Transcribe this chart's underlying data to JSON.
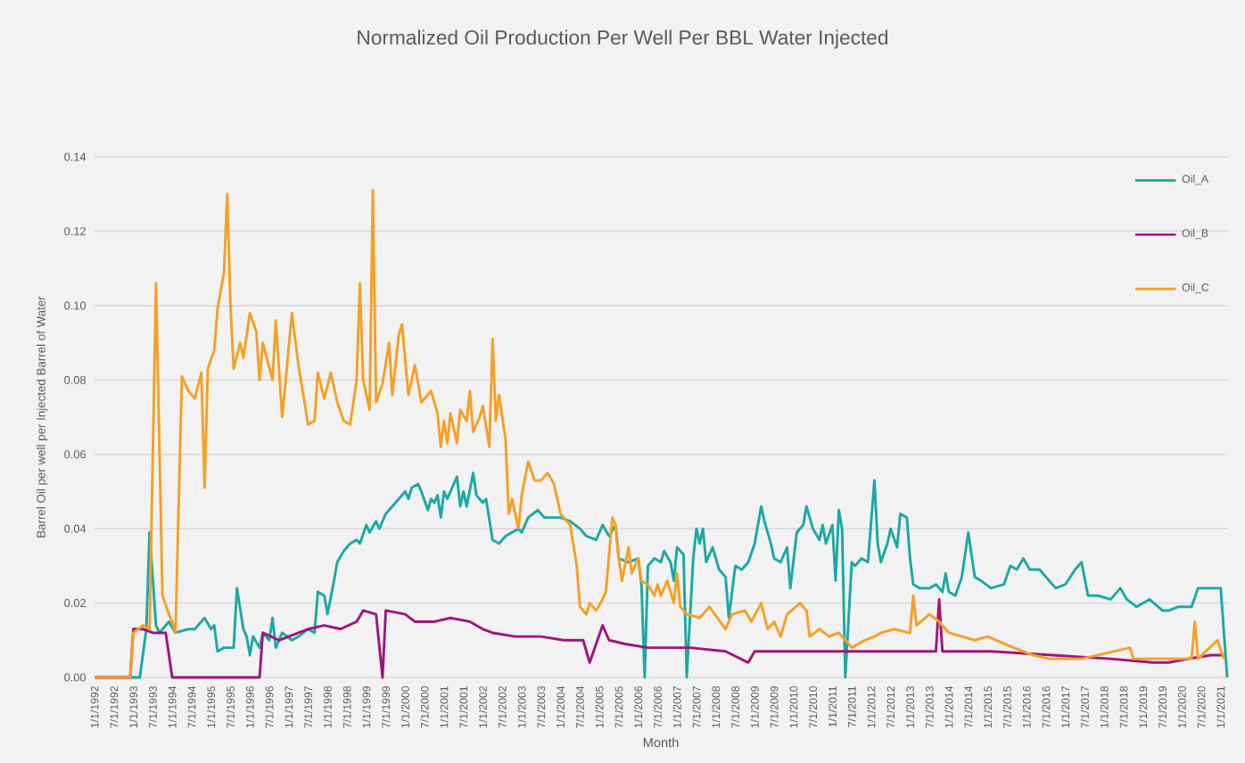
{
  "chart_data": {
    "type": "line",
    "title": "Normalized Oil Production Per Well Per BBL Water Injected",
    "xlabel": "Month",
    "ylabel": "Barrel Oil per well per Injected Barrel of Water",
    "xlim": [
      "1992-01",
      "2021-03"
    ],
    "ylim": [
      0,
      0.14
    ],
    "yticks": [
      {
        "value": 0,
        "label": "0.00"
      },
      {
        "value": 0.02,
        "label": "0.02"
      },
      {
        "value": 0.04,
        "label": "0.04"
      },
      {
        "value": 0.06,
        "label": "0.06"
      },
      {
        "value": 0.08,
        "label": "0.08"
      },
      {
        "value": 0.1,
        "label": "0.10"
      },
      {
        "value": 0.12,
        "label": "0.12"
      },
      {
        "value": 0.14,
        "label": "0.14"
      }
    ],
    "xticks": [
      {
        "value": "1992-01",
        "label": "1/1/1992"
      },
      {
        "value": "1992-07",
        "label": "7/1/1992"
      },
      {
        "value": "1993-01",
        "label": "1/1/1993"
      },
      {
        "value": "1993-07",
        "label": "7/1/1993"
      },
      {
        "value": "1994-01",
        "label": "1/1/1994"
      },
      {
        "value": "1994-07",
        "label": "7/1/1994"
      },
      {
        "value": "1995-01",
        "label": "1/1/1995"
      },
      {
        "value": "1995-07",
        "label": "7/1/1995"
      },
      {
        "value": "1996-01",
        "label": "1/1/1996"
      },
      {
        "value": "1996-07",
        "label": "7/1/1996"
      },
      {
        "value": "1997-01",
        "label": "1/1/1997"
      },
      {
        "value": "1997-07",
        "label": "7/1/1997"
      },
      {
        "value": "1998-01",
        "label": "1/1/1998"
      },
      {
        "value": "1998-07",
        "label": "7/1/1998"
      },
      {
        "value": "1999-01",
        "label": "1/1/1999"
      },
      {
        "value": "1999-07",
        "label": "7/1/1999"
      },
      {
        "value": "2000-01",
        "label": "1/1/2000"
      },
      {
        "value": "2000-07",
        "label": "7/1/2000"
      },
      {
        "value": "2001-01",
        "label": "1/1/2001"
      },
      {
        "value": "2001-07",
        "label": "7/1/2001"
      },
      {
        "value": "2002-01",
        "label": "1/1/2002"
      },
      {
        "value": "2002-07",
        "label": "7/1/2002"
      },
      {
        "value": "2003-01",
        "label": "1/1/2003"
      },
      {
        "value": "2003-07",
        "label": "7/1/2003"
      },
      {
        "value": "2004-01",
        "label": "1/1/2004"
      },
      {
        "value": "2004-07",
        "label": "7/1/2004"
      },
      {
        "value": "2005-01",
        "label": "1/1/2005"
      },
      {
        "value": "2005-07",
        "label": "7/1/2005"
      },
      {
        "value": "2006-01",
        "label": "1/1/2006"
      },
      {
        "value": "2006-07",
        "label": "7/1/2006"
      },
      {
        "value": "2007-01",
        "label": "1/1/2007"
      },
      {
        "value": "2007-07",
        "label": "7/1/2007"
      },
      {
        "value": "2008-01",
        "label": "1/1/2008"
      },
      {
        "value": "2008-07",
        "label": "7/1/2008"
      },
      {
        "value": "2009-01",
        "label": "1/1/2009"
      },
      {
        "value": "2009-07",
        "label": "7/1/2009"
      },
      {
        "value": "2010-01",
        "label": "1/1/2010"
      },
      {
        "value": "2010-07",
        "label": "7/1/2010"
      },
      {
        "value": "2011-01",
        "label": "1/1/2011"
      },
      {
        "value": "2011-07",
        "label": "7/1/2011"
      },
      {
        "value": "2012-01",
        "label": "1/1/2012"
      },
      {
        "value": "2012-07",
        "label": "7/1/2012"
      },
      {
        "value": "2013-01",
        "label": "1/1/2013"
      },
      {
        "value": "2013-07",
        "label": "7/1/2013"
      },
      {
        "value": "2014-01",
        "label": "1/1/2014"
      },
      {
        "value": "2014-07",
        "label": "7/1/2014"
      },
      {
        "value": "2015-01",
        "label": "1/1/2015"
      },
      {
        "value": "2015-07",
        "label": "7/1/2015"
      },
      {
        "value": "2016-01",
        "label": "1/1/2016"
      },
      {
        "value": "2016-07",
        "label": "7/1/2016"
      },
      {
        "value": "2017-01",
        "label": "1/1/2017"
      },
      {
        "value": "2017-07",
        "label": "7/1/2017"
      },
      {
        "value": "2018-01",
        "label": "1/1/2018"
      },
      {
        "value": "2018-07",
        "label": "7/1/2018"
      },
      {
        "value": "2019-01",
        "label": "1/1/2019"
      },
      {
        "value": "2019-07",
        "label": "7/1/2019"
      },
      {
        "value": "2020-01",
        "label": "1/1/2020"
      },
      {
        "value": "2020-07",
        "label": "7/1/2020"
      },
      {
        "value": "2021-01",
        "label": "1/1/2021"
      }
    ],
    "grid": "y",
    "legend": "top right",
    "series": [
      {
        "name": "Oil_A",
        "color": "#1ba9a5",
        "x": [
          "1992-01",
          "1993-03",
          "1993-05",
          "1993-06",
          "1993-08",
          "1993-09",
          "1993-12",
          "1994-02",
          "1994-06",
          "1994-08",
          "1994-11",
          "1995-01",
          "1995-02",
          "1995-03",
          "1995-05",
          "1995-08",
          "1995-09",
          "1995-11",
          "1995-12",
          "1996-01",
          "1996-02",
          "1996-04",
          "1996-05",
          "1996-07",
          "1996-08",
          "1996-09",
          "1996-11",
          "1997-02",
          "1997-04",
          "1997-07",
          "1997-09",
          "1997-10",
          "1997-12",
          "1998-01",
          "1998-03",
          "1998-04",
          "1998-06",
          "1998-08",
          "1998-10",
          "1998-11",
          "1999-01",
          "1999-02",
          "1999-04",
          "1999-05",
          "1999-07",
          "1999-09",
          "1999-11",
          "2000-01",
          "2000-02",
          "2000-03",
          "2000-05",
          "2000-06",
          "2000-08",
          "2000-09",
          "2000-10",
          "2000-11",
          "2000-12",
          "2001-01",
          "2001-02",
          "2001-04",
          "2001-05",
          "2001-06",
          "2001-07",
          "2001-08",
          "2001-10",
          "2001-11",
          "2002-01",
          "2002-02",
          "2002-04",
          "2002-06",
          "2002-08",
          "2002-10",
          "2002-12",
          "2003-01",
          "2003-03",
          "2003-06",
          "2003-08",
          "2003-10",
          "2004-01",
          "2004-04",
          "2004-07",
          "2004-09",
          "2004-12",
          "2005-02",
          "2005-04",
          "2005-06",
          "2005-07",
          "2005-10",
          "2006-01",
          "2006-02",
          "2006-03",
          "2006-04",
          "2006-06",
          "2006-08",
          "2006-09",
          "2006-11",
          "2006-12",
          "2007-01",
          "2007-03",
          "2007-04",
          "2007-06",
          "2007-07",
          "2007-08",
          "2007-09",
          "2007-10",
          "2007-12",
          "2008-02",
          "2008-04",
          "2008-05",
          "2008-07",
          "2008-09",
          "2008-11",
          "2009-01",
          "2009-03",
          "2009-04",
          "2009-06",
          "2009-07",
          "2009-09",
          "2009-11",
          "2009-12",
          "2010-02",
          "2010-04",
          "2010-05",
          "2010-07",
          "2010-09",
          "2010-10",
          "2010-11",
          "2011-01",
          "2011-02",
          "2011-03",
          "2011-04",
          "2011-05",
          "2011-07",
          "2011-08",
          "2011-10",
          "2011-12",
          "2012-02",
          "2012-03",
          "2012-04",
          "2012-06",
          "2012-07",
          "2012-09",
          "2012-10",
          "2012-12",
          "2013-01",
          "2013-02",
          "2013-04",
          "2013-07",
          "2013-09",
          "2013-11",
          "2013-12",
          "2014-01",
          "2014-03",
          "2014-05",
          "2014-07",
          "2014-09",
          "2014-11",
          "2015-02",
          "2015-06",
          "2015-08",
          "2015-10",
          "2015-12",
          "2016-02",
          "2016-05",
          "2016-08",
          "2016-10",
          "2017-01",
          "2017-04",
          "2017-06",
          "2017-08",
          "2017-11",
          "2018-03",
          "2018-06",
          "2018-08",
          "2018-11",
          "2019-03",
          "2019-07",
          "2019-09",
          "2019-12",
          "2020-04",
          "2020-06",
          "2020-08",
          "2020-12",
          "2021-01",
          "2021-03"
        ],
        "values": [
          0,
          0,
          0.013,
          0.039,
          0.014,
          0.012,
          0.015,
          0.012,
          0.013,
          0.013,
          0.016,
          0.013,
          0.014,
          0.007,
          0.008,
          0.008,
          0.024,
          0.013,
          0.011,
          0.006,
          0.011,
          0.008,
          0.012,
          0.01,
          0.016,
          0.008,
          0.012,
          0.01,
          0.011,
          0.013,
          0.012,
          0.023,
          0.022,
          0.017,
          0.026,
          0.031,
          0.034,
          0.036,
          0.037,
          0.036,
          0.041,
          0.039,
          0.042,
          0.04,
          0.044,
          0.046,
          0.048,
          0.05,
          0.048,
          0.051,
          0.052,
          0.05,
          0.045,
          0.048,
          0.047,
          0.049,
          0.043,
          0.05,
          0.048,
          0.052,
          0.054,
          0.046,
          0.05,
          0.046,
          0.055,
          0.049,
          0.047,
          0.048,
          0.037,
          0.036,
          0.038,
          0.039,
          0.04,
          0.039,
          0.043,
          0.045,
          0.043,
          0.043,
          0.043,
          0.042,
          0.04,
          0.038,
          0.037,
          0.041,
          0.038,
          0.041,
          0.032,
          0.031,
          0.032,
          0.025,
          0,
          0.03,
          0.032,
          0.031,
          0.034,
          0.031,
          0.026,
          0.035,
          0.033,
          0,
          0.032,
          0.04,
          0.036,
          0.04,
          0.031,
          0.035,
          0.029,
          0.027,
          0.016,
          0.03,
          0.029,
          0.031,
          0.036,
          0.046,
          0.042,
          0.036,
          0.032,
          0.031,
          0.035,
          0.024,
          0.039,
          0.041,
          0.046,
          0.04,
          0.037,
          0.041,
          0.036,
          0.041,
          0.026,
          0.045,
          0.04,
          0,
          0.031,
          0.03,
          0.032,
          0.031,
          0.053,
          0.036,
          0.031,
          0.036,
          0.04,
          0.035,
          0.044,
          0.043,
          0.032,
          0.025,
          0.024,
          0.024,
          0.025,
          0.023,
          0.028,
          0.023,
          0.022,
          0.027,
          0.039,
          0.027,
          0.026,
          0.024,
          0.025,
          0.03,
          0.029,
          0.032,
          0.029,
          0.029,
          0.026,
          0.024,
          0.025,
          0.029,
          0.031,
          0.022,
          0.022,
          0.021,
          0.024,
          0.021,
          0.019,
          0.021,
          0.018,
          0.018,
          0.019,
          0.019,
          0.024,
          0.024,
          0.024,
          0.024,
          0
        ]
      },
      {
        "name": "Oil_B",
        "color": "#a0157f",
        "x": [
          "1992-01",
          "1992-12",
          "1993-01",
          "1993-04",
          "1993-07",
          "1993-11",
          "1994-01",
          "1996-04",
          "1996-05",
          "1996-10",
          "1997-04",
          "1997-07",
          "1997-12",
          "1998-05",
          "1998-10",
          "1998-12",
          "1999-04",
          "1999-06",
          "1999-07",
          "2000-01",
          "2000-04",
          "2000-10",
          "2001-03",
          "2001-09",
          "2002-01",
          "2002-04",
          "2002-11",
          "2003-07",
          "2004-02",
          "2004-08",
          "2004-10",
          "2004-12",
          "2005-02",
          "2005-04",
          "2005-09",
          "2006-04",
          "2007-05",
          "2008-04",
          "2008-11",
          "2009-01",
          "2009-10",
          "2011-01",
          "2012-02",
          "2013-02",
          "2013-09",
          "2013-10",
          "2013-11",
          "2015-02",
          "2016-09",
          "2018-03",
          "2019-04",
          "2019-09",
          "2020-03",
          "2020-10",
          "2021-02"
        ],
        "values": [
          0,
          0,
          0.013,
          0.013,
          0.012,
          0.012,
          0,
          0,
          0.012,
          0.01,
          0.012,
          0.013,
          0.014,
          0.013,
          0.015,
          0.018,
          0.017,
          0,
          0.018,
          0.017,
          0.015,
          0.015,
          0.016,
          0.015,
          0.013,
          0.012,
          0.011,
          0.011,
          0.01,
          0.01,
          0.004,
          0.009,
          0.014,
          0.01,
          0.009,
          0.008,
          0.008,
          0.007,
          0.004,
          0.007,
          0.007,
          0.007,
          0.007,
          0.007,
          0.007,
          0.021,
          0.007,
          0.007,
          0.006,
          0.005,
          0.004,
          0.004,
          0.005,
          0.006,
          0.006
        ]
      },
      {
        "name": "Oil_C",
        "color": "#f5a026",
        "x": [
          "1992-01",
          "1992-12",
          "1993-01",
          "1993-04",
          "1993-06",
          "1993-08",
          "1993-10",
          "1993-12",
          "1994-01",
          "1994-02",
          "1994-04",
          "1994-06",
          "1994-08",
          "1994-10",
          "1994-11",
          "1994-12",
          "1995-02",
          "1995-03",
          "1995-05",
          "1995-06",
          "1995-07",
          "1995-08",
          "1995-10",
          "1995-11",
          "1996-01",
          "1996-03",
          "1996-04",
          "1996-05",
          "1996-08",
          "1996-09",
          "1996-11",
          "1997-02",
          "1997-04",
          "1997-07",
          "1997-09",
          "1997-10",
          "1997-12",
          "1998-02",
          "1998-04",
          "1998-06",
          "1998-08",
          "1998-10",
          "1998-11",
          "1998-12",
          "1999-02",
          "1999-03",
          "1999-04",
          "1999-06",
          "1999-08",
          "1999-09",
          "1999-11",
          "1999-12",
          "2000-02",
          "2000-04",
          "2000-06",
          "2000-09",
          "2000-11",
          "2000-12",
          "2001-01",
          "2001-02",
          "2001-03",
          "2001-05",
          "2001-06",
          "2001-08",
          "2001-09",
          "2001-10",
          "2001-12",
          "2002-01",
          "2002-03",
          "2002-04",
          "2002-05",
          "2002-06",
          "2002-08",
          "2002-09",
          "2002-10",
          "2002-12",
          "2003-01",
          "2003-03",
          "2003-05",
          "2003-07",
          "2003-09",
          "2003-11",
          "2004-01",
          "2004-04",
          "2004-06",
          "2004-07",
          "2004-09",
          "2004-10",
          "2004-12",
          "2005-02",
          "2005-03",
          "2005-05",
          "2005-06",
          "2005-07",
          "2005-08",
          "2005-10",
          "2005-11",
          "2006-01",
          "2006-02",
          "2006-04",
          "2006-06",
          "2006-07",
          "2006-08",
          "2006-10",
          "2006-12",
          "2007-01",
          "2007-02",
          "2007-04",
          "2007-08",
          "2007-11",
          "2008-04",
          "2008-06",
          "2008-10",
          "2008-12",
          "2009-03",
          "2009-05",
          "2009-07",
          "2009-09",
          "2009-11",
          "2010-03",
          "2010-05",
          "2010-06",
          "2010-09",
          "2010-12",
          "2011-03",
          "2011-07",
          "2011-11",
          "2012-02",
          "2012-04",
          "2012-08",
          "2013-01",
          "2013-02",
          "2013-03",
          "2013-07",
          "2013-10",
          "2014-01",
          "2014-09",
          "2015-01",
          "2015-09",
          "2016-03",
          "2016-08",
          "2017-06",
          "2018-09",
          "2018-10",
          "2019-07",
          "2020-04",
          "2020-05",
          "2020-06",
          "2020-12",
          "2021-02"
        ],
        "values": [
          0,
          0,
          0.012,
          0.014,
          0.013,
          0.106,
          0.022,
          0.017,
          0.015,
          0.012,
          0.081,
          0.077,
          0.075,
          0.082,
          0.051,
          0.083,
          0.088,
          0.099,
          0.109,
          0.13,
          0.1,
          0.083,
          0.09,
          0.086,
          0.098,
          0.093,
          0.08,
          0.09,
          0.08,
          0.096,
          0.07,
          0.098,
          0.084,
          0.068,
          0.069,
          0.082,
          0.075,
          0.082,
          0.074,
          0.069,
          0.068,
          0.08,
          0.106,
          0.08,
          0.072,
          0.131,
          0.074,
          0.079,
          0.09,
          0.076,
          0.092,
          0.095,
          0.076,
          0.084,
          0.074,
          0.077,
          0.071,
          0.062,
          0.069,
          0.063,
          0.071,
          0.063,
          0.072,
          0.069,
          0.077,
          0.066,
          0.07,
          0.073,
          0.062,
          0.091,
          0.069,
          0.076,
          0.064,
          0.044,
          0.048,
          0.04,
          0.049,
          0.058,
          0.053,
          0.053,
          0.055,
          0.052,
          0.044,
          0.041,
          0.03,
          0.019,
          0.017,
          0.02,
          0.018,
          0.021,
          0.023,
          0.043,
          0.041,
          0.032,
          0.026,
          0.035,
          0.028,
          0.032,
          0.026,
          0.025,
          0.022,
          0.025,
          0.022,
          0.026,
          0.02,
          0.028,
          0.019,
          0.017,
          0.016,
          0.019,
          0.013,
          0.017,
          0.018,
          0.015,
          0.02,
          0.013,
          0.015,
          0.011,
          0.017,
          0.02,
          0.018,
          0.011,
          0.013,
          0.011,
          0.012,
          0.008,
          0.01,
          0.011,
          0.012,
          0.013,
          0.012,
          0.022,
          0.014,
          0.017,
          0.015,
          0.012,
          0.01,
          0.011,
          0.008,
          0.006,
          0.005,
          0.005,
          0.008,
          0.005,
          0.005,
          0.005,
          0.015,
          0.005,
          0.01,
          0.005
        ]
      }
    ]
  }
}
